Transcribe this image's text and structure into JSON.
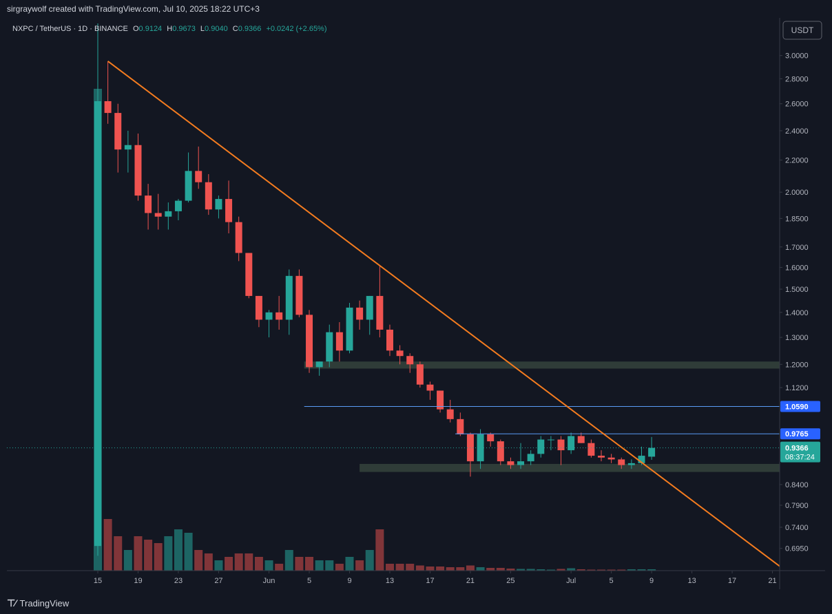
{
  "header": {
    "credit": "sirgraywolf created with TradingView.com, Jul 10, 2025 18:22 UTC+3"
  },
  "legend": {
    "symbol": "NXPC / TetherUS · 1D · BINANCE",
    "o_label": "O",
    "o": "0.9124",
    "h_label": "H",
    "h": "0.9673",
    "l_label": "L",
    "l": "0.9040",
    "c_label": "C",
    "c": "0.9366",
    "change": "+0.0242 (+2.65%)"
  },
  "currency_button": "USDT",
  "footer": {
    "brand": "TradingView"
  },
  "colors": {
    "up": "#26a69a",
    "down": "#ef5350",
    "trend": "#f57c1f",
    "level": "#5b9cf6",
    "zone": "#3a4a40"
  },
  "chart_data": {
    "type": "candlestick",
    "scale": "log",
    "ylim": [
      0.66,
      3.3
    ],
    "y_ticks": [
      3.0,
      2.8,
      2.6,
      2.4,
      2.2,
      2.0,
      1.85,
      1.7,
      1.6,
      1.5,
      1.4,
      1.3,
      1.2,
      1.12,
      0.84,
      0.79,
      0.74,
      0.695
    ],
    "y_tick_labels": [
      "3.0000",
      "2.8000",
      "2.6000",
      "2.4000",
      "2.2000",
      "2.0000",
      "1.8500",
      "1.7000",
      "1.6000",
      "1.5000",
      "1.4000",
      "1.3000",
      "1.2000",
      "1.1200",
      "0.8400",
      "0.7900",
      "0.7400",
      "0.6950"
    ],
    "x_labels": [
      {
        "day": 0,
        "label": "15"
      },
      {
        "day": 4,
        "label": "19"
      },
      {
        "day": 8,
        "label": "23"
      },
      {
        "day": 12,
        "label": "27"
      },
      {
        "day": 17,
        "label": "Jun"
      },
      {
        "day": 21,
        "label": "5"
      },
      {
        "day": 25,
        "label": "9"
      },
      {
        "day": 29,
        "label": "13"
      },
      {
        "day": 33,
        "label": "17"
      },
      {
        "day": 37,
        "label": "21"
      },
      {
        "day": 41,
        "label": "25"
      },
      {
        "day": 47,
        "label": "Jul"
      },
      {
        "day": 51,
        "label": "5"
      },
      {
        "day": 55,
        "label": "9"
      },
      {
        "day": 59,
        "label": "13"
      },
      {
        "day": 63,
        "label": "17"
      },
      {
        "day": 67,
        "label": "21"
      }
    ],
    "candles": [
      {
        "o": 0.7,
        "h": 4.3,
        "l": 0.68,
        "c": 2.62,
        "v": 100
      },
      {
        "o": 2.62,
        "h": 2.95,
        "l": 2.45,
        "c": 2.53,
        "v": 15
      },
      {
        "o": 2.53,
        "h": 2.6,
        "l": 2.12,
        "c": 2.27,
        "v": 10
      },
      {
        "o": 2.27,
        "h": 2.4,
        "l": 2.12,
        "c": 2.3,
        "v": 6
      },
      {
        "o": 2.3,
        "h": 2.38,
        "l": 1.95,
        "c": 1.98,
        "v": 10
      },
      {
        "o": 1.98,
        "h": 2.05,
        "l": 1.79,
        "c": 1.88,
        "v": 9
      },
      {
        "o": 1.88,
        "h": 1.99,
        "l": 1.79,
        "c": 1.86,
        "v": 8
      },
      {
        "o": 1.86,
        "h": 1.94,
        "l": 1.79,
        "c": 1.89,
        "v": 10
      },
      {
        "o": 1.89,
        "h": 1.96,
        "l": 1.84,
        "c": 1.95,
        "v": 12
      },
      {
        "o": 1.95,
        "h": 2.25,
        "l": 1.94,
        "c": 2.13,
        "v": 11
      },
      {
        "o": 2.13,
        "h": 2.29,
        "l": 2.02,
        "c": 2.06,
        "v": 6
      },
      {
        "o": 2.06,
        "h": 2.11,
        "l": 1.87,
        "c": 1.9,
        "v": 5
      },
      {
        "o": 1.9,
        "h": 1.98,
        "l": 1.85,
        "c": 1.96,
        "v": 3
      },
      {
        "o": 1.96,
        "h": 2.07,
        "l": 1.77,
        "c": 1.83,
        "v": 4
      },
      {
        "o": 1.83,
        "h": 1.86,
        "l": 1.63,
        "c": 1.67,
        "v": 5
      },
      {
        "o": 1.67,
        "h": 1.67,
        "l": 1.46,
        "c": 1.47,
        "v": 5
      },
      {
        "o": 1.47,
        "h": 1.47,
        "l": 1.34,
        "c": 1.37,
        "v": 4
      },
      {
        "o": 1.37,
        "h": 1.41,
        "l": 1.3,
        "c": 1.4,
        "v": 3
      },
      {
        "o": 1.4,
        "h": 1.47,
        "l": 1.33,
        "c": 1.37,
        "v": 2
      },
      {
        "o": 1.37,
        "h": 1.59,
        "l": 1.31,
        "c": 1.56,
        "v": 6
      },
      {
        "o": 1.56,
        "h": 1.59,
        "l": 1.38,
        "c": 1.39,
        "v": 4
      },
      {
        "o": 1.39,
        "h": 1.41,
        "l": 1.17,
        "c": 1.19,
        "v": 4
      },
      {
        "o": 1.19,
        "h": 1.21,
        "l": 1.16,
        "c": 1.21,
        "v": 3
      },
      {
        "o": 1.21,
        "h": 1.35,
        "l": 1.19,
        "c": 1.32,
        "v": 3
      },
      {
        "o": 1.32,
        "h": 1.36,
        "l": 1.21,
        "c": 1.25,
        "v": 2
      },
      {
        "o": 1.25,
        "h": 1.44,
        "l": 1.24,
        "c": 1.42,
        "v": 4
      },
      {
        "o": 1.42,
        "h": 1.45,
        "l": 1.33,
        "c": 1.37,
        "v": 3
      },
      {
        "o": 1.37,
        "h": 1.47,
        "l": 1.31,
        "c": 1.47,
        "v": 6
      },
      {
        "o": 1.47,
        "h": 1.61,
        "l": 1.3,
        "c": 1.33,
        "v": 12
      },
      {
        "o": 1.33,
        "h": 1.35,
        "l": 1.23,
        "c": 1.25,
        "v": 2
      },
      {
        "o": 1.25,
        "h": 1.27,
        "l": 1.2,
        "c": 1.23,
        "v": 2
      },
      {
        "o": 1.23,
        "h": 1.24,
        "l": 1.17,
        "c": 1.2,
        "v": 2
      },
      {
        "o": 1.2,
        "h": 1.21,
        "l": 1.12,
        "c": 1.13,
        "v": 1.5
      },
      {
        "o": 1.13,
        "h": 1.14,
        "l": 1.08,
        "c": 1.11,
        "v": 1.2
      },
      {
        "o": 1.11,
        "h": 1.11,
        "l": 1.04,
        "c": 1.05,
        "v": 1.2
      },
      {
        "o": 1.05,
        "h": 1.08,
        "l": 1.01,
        "c": 1.02,
        "v": 1
      },
      {
        "o": 1.02,
        "h": 1.04,
        "l": 0.97,
        "c": 0.975,
        "v": 1
      },
      {
        "o": 0.975,
        "h": 0.98,
        "l": 0.86,
        "c": 0.9,
        "v": 1.5
      },
      {
        "o": 0.9,
        "h": 0.99,
        "l": 0.88,
        "c": 0.975,
        "v": 1
      },
      {
        "o": 0.975,
        "h": 0.98,
        "l": 0.94,
        "c": 0.955,
        "v": 0.8
      },
      {
        "o": 0.955,
        "h": 0.96,
        "l": 0.89,
        "c": 0.9,
        "v": 0.8
      },
      {
        "o": 0.9,
        "h": 0.91,
        "l": 0.88,
        "c": 0.89,
        "v": 0.6
      },
      {
        "o": 0.89,
        "h": 0.95,
        "l": 0.88,
        "c": 0.9,
        "v": 0.5
      },
      {
        "o": 0.9,
        "h": 0.93,
        "l": 0.89,
        "c": 0.92,
        "v": 0.5
      },
      {
        "o": 0.92,
        "h": 0.97,
        "l": 0.91,
        "c": 0.96,
        "v": 0.4
      },
      {
        "o": 0.96,
        "h": 0.97,
        "l": 0.93,
        "c": 0.96,
        "v": 0.3
      },
      {
        "o": 0.96,
        "h": 0.97,
        "l": 0.89,
        "c": 0.93,
        "v": 0.5
      },
      {
        "o": 0.93,
        "h": 0.98,
        "l": 0.92,
        "c": 0.97,
        "v": 0.7
      },
      {
        "o": 0.97,
        "h": 0.98,
        "l": 0.95,
        "c": 0.95,
        "v": 0.4
      },
      {
        "o": 0.95,
        "h": 0.96,
        "l": 0.91,
        "c": 0.915,
        "v": 0.3
      },
      {
        "o": 0.915,
        "h": 0.93,
        "l": 0.9,
        "c": 0.91,
        "v": 0.3
      },
      {
        "o": 0.91,
        "h": 0.92,
        "l": 0.895,
        "c": 0.905,
        "v": 0.3
      },
      {
        "o": 0.905,
        "h": 0.91,
        "l": 0.88,
        "c": 0.89,
        "v": 0.3
      },
      {
        "o": 0.89,
        "h": 0.905,
        "l": 0.88,
        "c": 0.895,
        "v": 0.4
      },
      {
        "o": 0.895,
        "h": 0.94,
        "l": 0.89,
        "c": 0.915,
        "v": 0.4
      },
      {
        "o": 0.9124,
        "h": 0.9673,
        "l": 0.904,
        "c": 0.9366,
        "v": 0.4
      }
    ],
    "trendline": {
      "from": {
        "day": 1,
        "price": 2.95
      },
      "to": {
        "day": 68,
        "price": 0.655
      }
    },
    "zones": [
      {
        "from_day": 20.5,
        "to_day": 69,
        "low": 1.185,
        "high": 1.21
      },
      {
        "from_day": 26,
        "to_day": 69,
        "low": 0.872,
        "high": 0.893
      }
    ],
    "levels": [
      {
        "price": 1.059,
        "label": "1.0590",
        "from_day": 20.5
      },
      {
        "price": 0.9765,
        "label": "0.9765",
        "from_day": 35.5
      }
    ],
    "last_price": {
      "price": 0.9366,
      "label": "0.9366",
      "countdown": "08:37:24"
    }
  }
}
